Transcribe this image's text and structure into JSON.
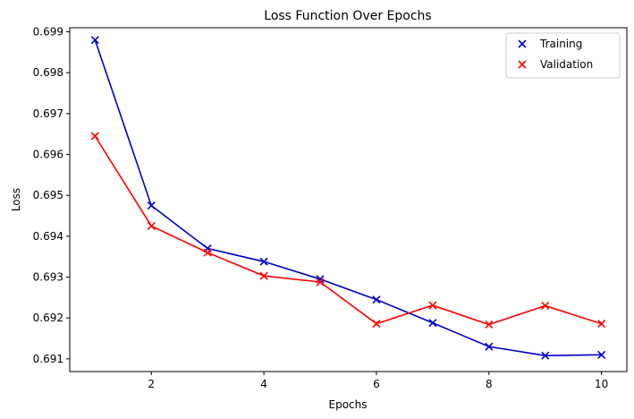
{
  "chart_data": {
    "type": "line",
    "title": "Loss Function Over Epochs",
    "xlabel": "Epochs",
    "ylabel": "Loss",
    "x": [
      1,
      2,
      3,
      4,
      5,
      6,
      7,
      8,
      9,
      10
    ],
    "xlim": [
      0.55,
      10.45
    ],
    "ylim": [
      0.69069,
      0.6991
    ],
    "xticks": [
      2,
      4,
      6,
      8,
      10
    ],
    "yticks": [
      0.691,
      0.692,
      0.693,
      0.694,
      0.695,
      0.696,
      0.697,
      0.698,
      0.699
    ],
    "grid": false,
    "legend_position": "top-right",
    "marker": "x",
    "series": [
      {
        "name": "Training",
        "color": "#0000cc",
        "values": [
          0.6988,
          0.69475,
          0.6937,
          0.69338,
          0.69295,
          0.69245,
          0.69188,
          0.6913,
          0.69108,
          0.6911
        ]
      },
      {
        "name": "Validation",
        "color": "#ff0000",
        "values": [
          0.69645,
          0.69425,
          0.6936,
          0.69303,
          0.69288,
          0.69186,
          0.69231,
          0.69184,
          0.6923,
          0.69186
        ]
      }
    ]
  }
}
